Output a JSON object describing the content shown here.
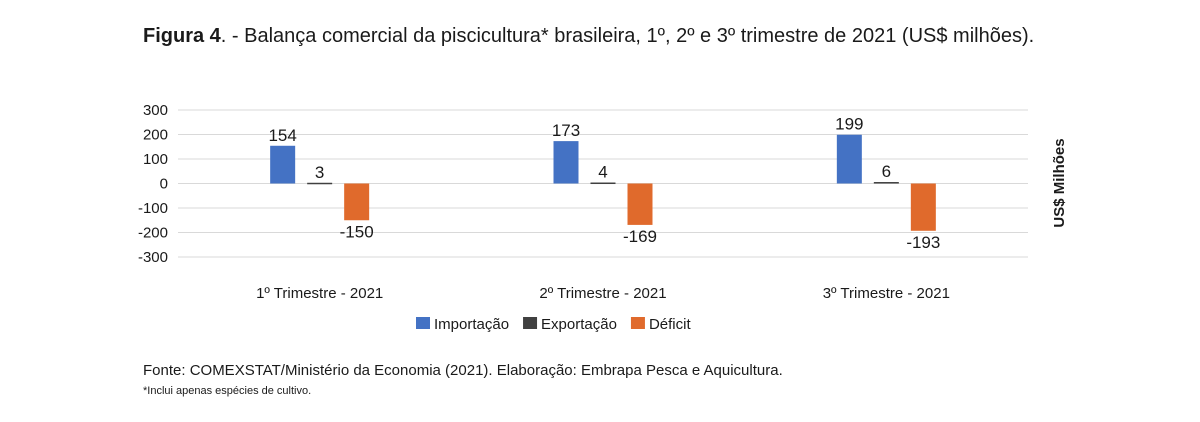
{
  "figure": {
    "label": "Figura 4",
    "title": ". - Balança comercial da piscicultura* brasileira, 1º, 2º e 3º trimestre de 2021 (US$ milhões)."
  },
  "source": "Fonte: COMEXSTAT/Ministério da Economia (2021). Elaboração: Embrapa Pesca e Aquicultura.",
  "note": "*Inclui apenas espécies de cultivo.",
  "chart_data": {
    "type": "bar",
    "categories": [
      "1º Trimestre - 2021",
      "2º Trimestre - 2021",
      "3º Trimestre - 2021"
    ],
    "series": [
      {
        "name": "Importação",
        "values": [
          154,
          173,
          199
        ],
        "color": "#4472c4"
      },
      {
        "name": "Exportação",
        "values": [
          3,
          4,
          6
        ],
        "color": "#404040"
      },
      {
        "name": "Déficit",
        "values": [
          -150,
          -169,
          -193
        ],
        "color": "#e06a2c"
      }
    ],
    "data_labels": [
      [
        "154",
        "3",
        "-150"
      ],
      [
        "173",
        "4",
        "-169"
      ],
      [
        "199",
        "6",
        "-193"
      ]
    ],
    "ylabel": "US$ Milhões",
    "ylim": [
      -300,
      300
    ],
    "yticks": [
      300,
      200,
      100,
      0,
      -100,
      -200,
      -300
    ],
    "ytick_labels": [
      "300",
      "200",
      "100",
      "0",
      "-100",
      "-200",
      "-300"
    ],
    "grid": true,
    "legend": "bottom-center"
  }
}
